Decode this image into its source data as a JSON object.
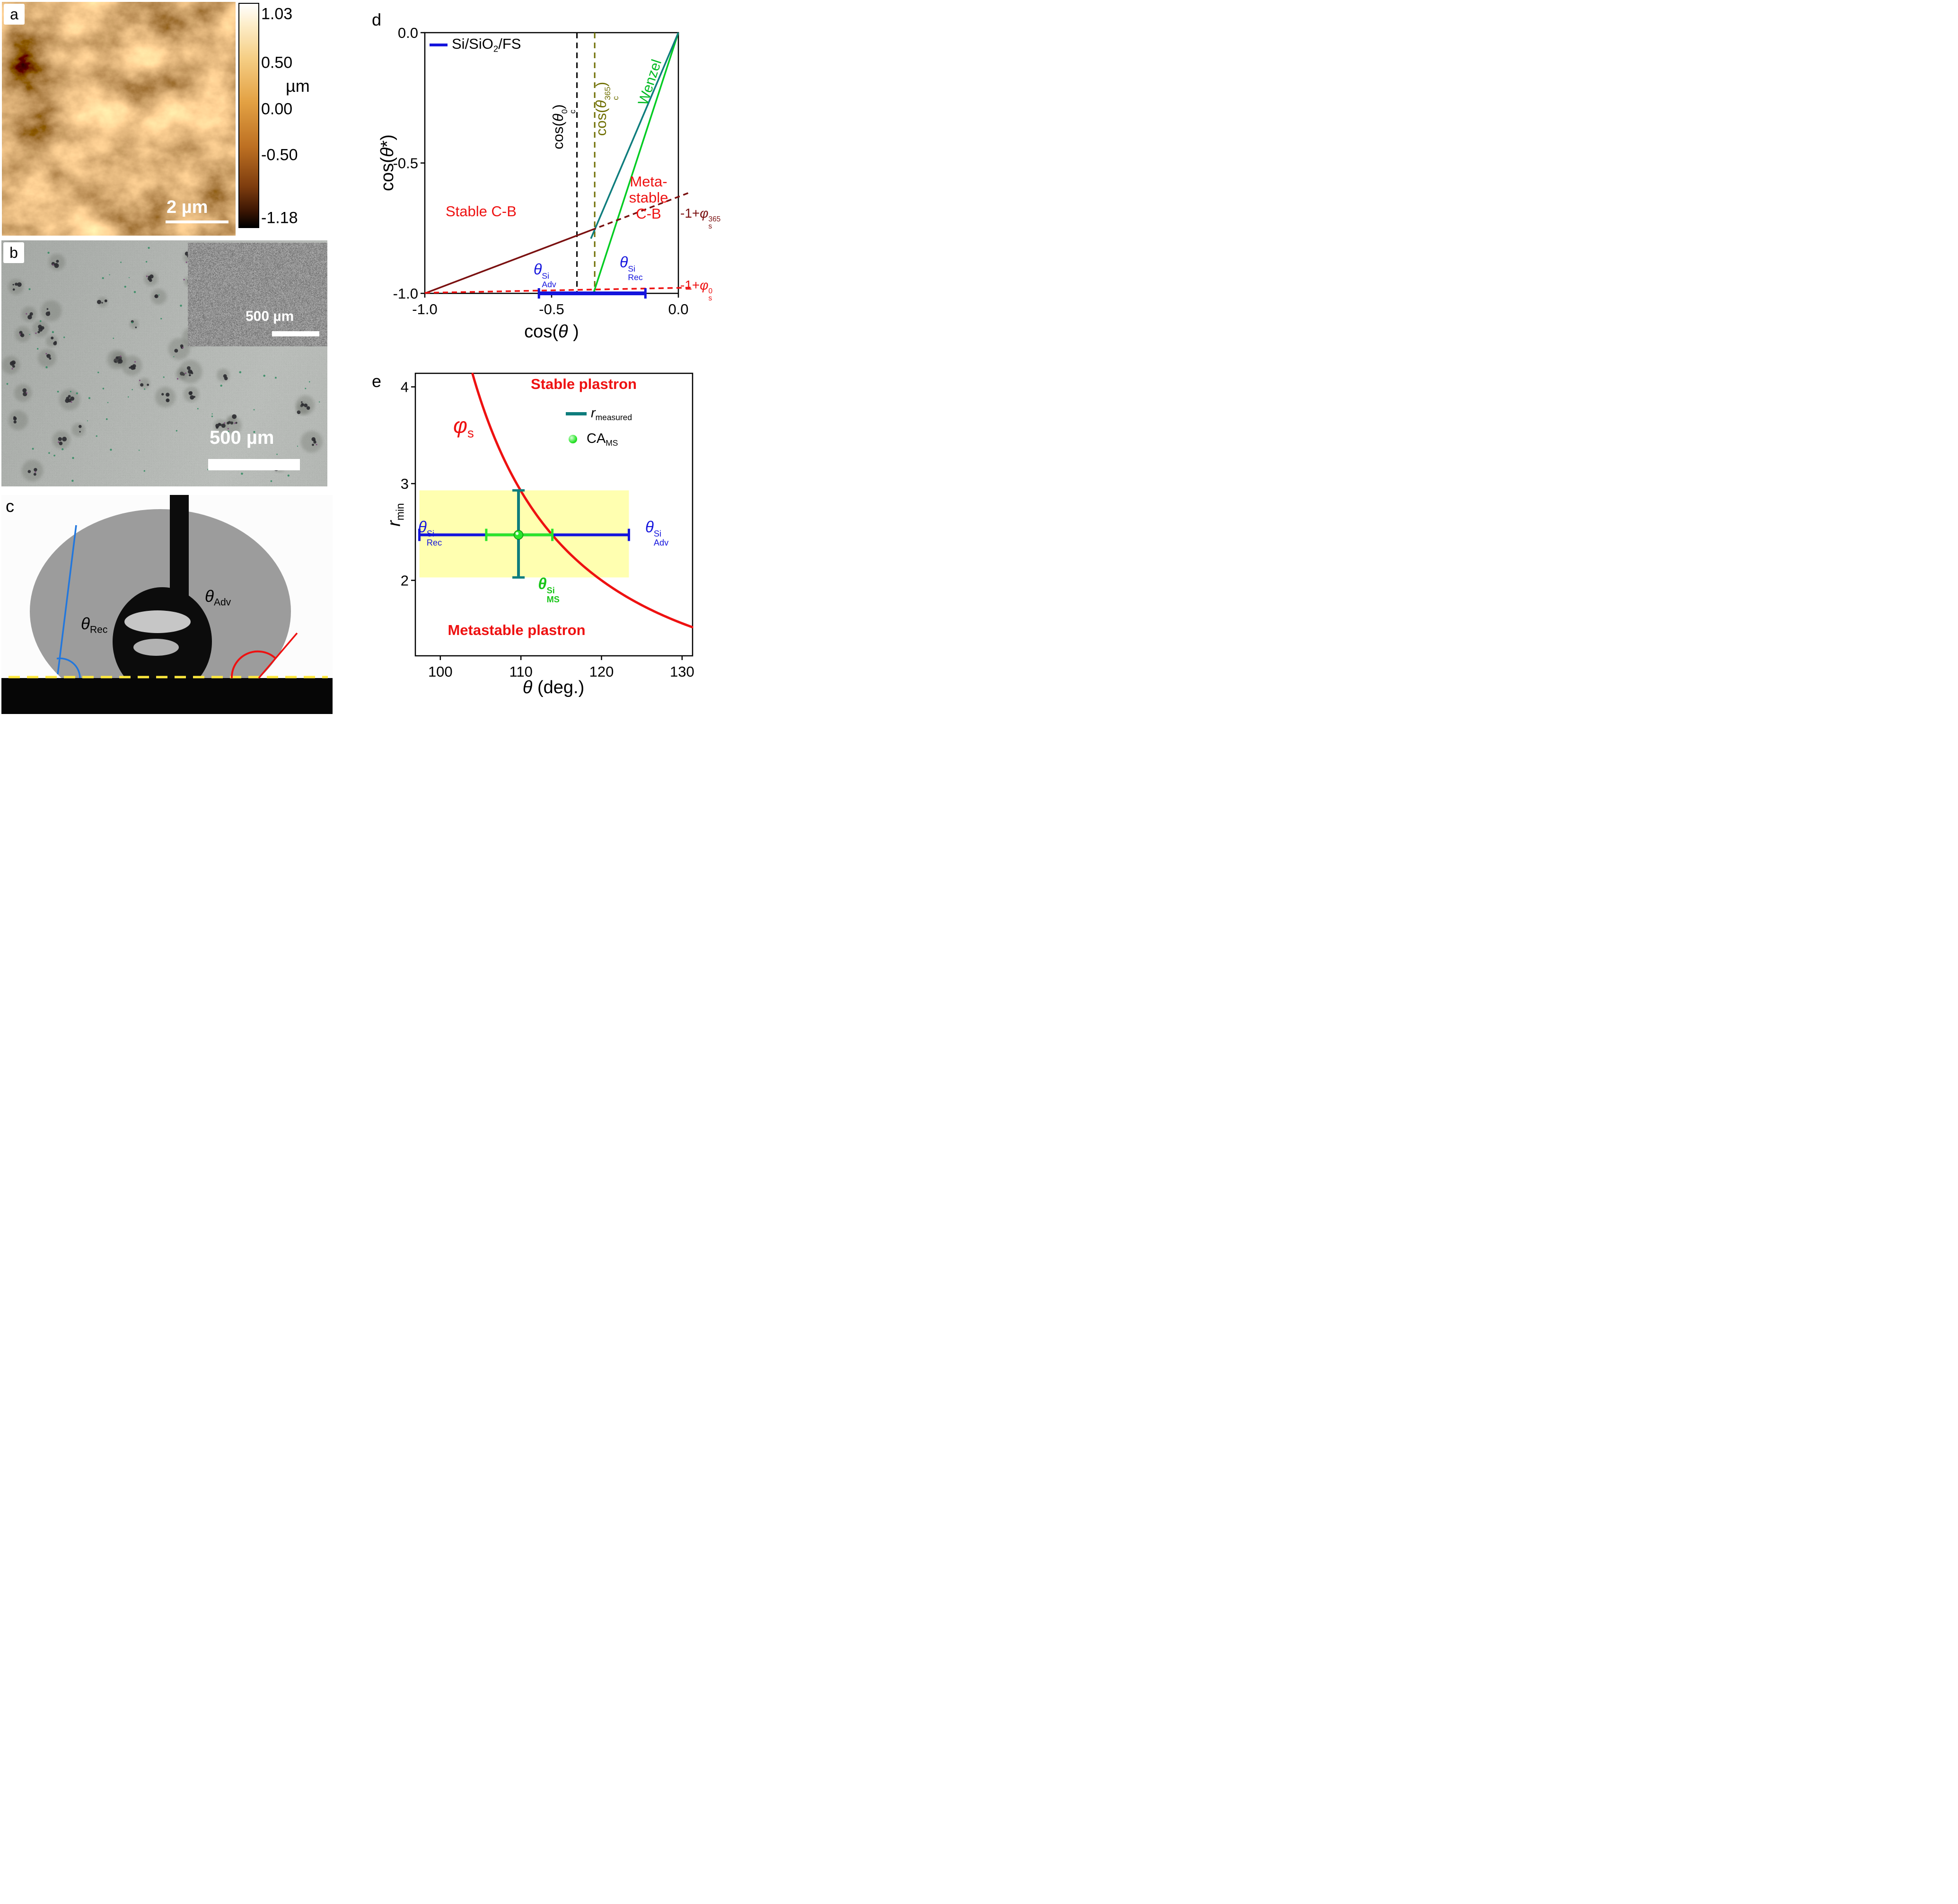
{
  "colors": {
    "blue": "#1414dd",
    "green": "#00cc22",
    "light_green": "#2ae52a",
    "red": "#ee1111",
    "dark_red": "#7a1010",
    "dark_yellow": "#6e6e00",
    "teal": "#0e7d7d",
    "yellow_region": "#ffffb0"
  },
  "panel_a": {
    "label": "a",
    "scalebar": "2 µm",
    "colorbar": {
      "unit": "µm",
      "ticks": [
        "1.03",
        "0.50",
        "0.00",
        "-0.50",
        "-1.18"
      ]
    }
  },
  "panel_b": {
    "label": "b",
    "scalebar": "500 µm",
    "inset_scalebar": "500 µm"
  },
  "panel_c": {
    "label": "c",
    "theta_rec": {
      "it": "θ",
      "sub": "Rec"
    },
    "theta_adv": {
      "it": "θ",
      "sub": "Adv"
    }
  },
  "panel_d": {
    "label": "d",
    "legend_series": {
      "pre": "Si/SiO",
      "sub": "2",
      "post": "/FS"
    },
    "ylabel": {
      "pre": "cos(",
      "it": "θ",
      "post": "*)"
    },
    "xlabel": {
      "pre": "cos(",
      "it": "θ",
      "post": " )"
    },
    "stable_region": "Stable C-B",
    "metastable_lines": [
      "Meta-",
      "stable",
      "C-B"
    ],
    "wenzel": "Wenzel",
    "crit0": {
      "pre": "cos(",
      "it": "θ",
      "sup": "0",
      "sub": "c",
      "post": ")"
    },
    "crit365": {
      "pre": "cos(",
      "it": "θ",
      "sup": "365",
      "sub": "c",
      "post": ")"
    },
    "phi365": {
      "pre": "-1+",
      "it": "φ",
      "sup": "365",
      "sub": "s"
    },
    "phi0": {
      "pre": "-1+",
      "it": "φ",
      "sup": "0",
      "sub": "s"
    },
    "theta_adv": {
      "it": "θ",
      "sup": "Si",
      "sub": "Adv"
    },
    "theta_rec": {
      "it": "θ",
      "sup": "Si",
      "sub": "Rec"
    }
  },
  "panel_e": {
    "label": "e",
    "stable_region": "Stable plastron",
    "metastable_region": "Metastable plastron",
    "phi_s": {
      "it": "φ",
      "sub": "s"
    },
    "legend_r": {
      "it": "r",
      "sub": "measured"
    },
    "legend_ca": {
      "pre": "CA",
      "sub": "MS"
    },
    "ylabel": {
      "it": "r",
      "sub": "min"
    },
    "xlabel": {
      "it": "θ",
      "post": " (deg.)"
    },
    "theta_rec": {
      "it": "θ",
      "sup": "Si",
      "sub": "Rec"
    },
    "theta_adv": {
      "it": "θ",
      "sup": "Si",
      "sub": "Adv"
    },
    "theta_ms": {
      "it": "θ",
      "sup": "Si",
      "sub": "MS"
    }
  },
  "chart_data": [
    {
      "panel": "d",
      "type": "line",
      "title": "",
      "xlabel": "cos(θ)",
      "ylabel": "cos(θ*)",
      "xlim": [
        -1.0,
        0.0
      ],
      "ylim": [
        -1.0,
        0.0
      ],
      "xticks": [
        -1.0,
        -0.5,
        0.0
      ],
      "yticks": [
        0.0,
        -0.5,
        -1.0
      ],
      "tick_decimals": 1,
      "grid": false,
      "legend": [
        {
          "label": "Si/SiO2/FS",
          "color": "#1414dd",
          "position": "top-left"
        }
      ],
      "series": [
        {
          "name": "wenzel-line",
          "color": "#00cc22",
          "width": 3.5,
          "x": [
            0,
            -0.335
          ],
          "y": [
            0,
            -1.0
          ]
        },
        {
          "name": "wenzel-si-line",
          "color": "#0e7d7d",
          "width": 3.5,
          "x": [
            0,
            -0.345
          ],
          "y": [
            0,
            -0.79
          ]
        },
        {
          "name": "cassie-baxter-365-stable",
          "color": "#7a1010",
          "width": 3.5,
          "x": [
            -1.0,
            -0.345
          ],
          "y": [
            -1.0,
            -0.758
          ]
        },
        {
          "name": "cassie-baxter-365-metastable",
          "color": "#7a1010",
          "width": 3.5,
          "dash": [
            11,
            8
          ],
          "x": [
            -0.345,
            0.05
          ],
          "y": [
            -0.758,
            -0.611
          ]
        },
        {
          "name": "cassie-baxter-0",
          "color": "#ee1111",
          "width": 3.5,
          "dash": [
            11,
            8
          ],
          "x": [
            -1.0,
            0.05
          ],
          "y": [
            -0.998,
            -0.978
          ]
        },
        {
          "name": "si-theta-range",
          "color": "#1414dd",
          "width": 8,
          "caps": true,
          "x": [
            -0.55,
            -0.13
          ],
          "y": [
            -1.0,
            -1.0
          ]
        }
      ],
      "vlines": [
        {
          "name": "cos-theta-c0",
          "x": -0.4,
          "color": "#000000",
          "dash": [
            12,
            9
          ],
          "width": 3
        },
        {
          "name": "cos-theta-c365",
          "x": -0.33,
          "color": "#6e6e00",
          "dash": [
            12,
            9
          ],
          "width": 3
        }
      ],
      "annotations": {
        "stable": "Stable C-B",
        "metastable": "Meta-stable C-B",
        "values": {
          "cos_theta_adv_si": -0.55,
          "cos_theta_rec_si": -0.13,
          "phi_s_365": 0.37,
          "phi_s_0": 0.02,
          "cos_theta_c0": -0.4,
          "cos_theta_c365": -0.33
        }
      }
    },
    {
      "panel": "e",
      "type": "line",
      "title": "",
      "xlabel": "θ (deg.)",
      "ylabel": "r_min",
      "xlim": [
        96.9,
        131.3
      ],
      "ylim": [
        1.22,
        4.14
      ],
      "xticks": [
        100,
        110,
        120,
        130
      ],
      "yticks": [
        2,
        3,
        4
      ],
      "tick_decimals": 0,
      "grid": false,
      "curve": {
        "name": "phi-s-stability-curve",
        "color": "#ee1111",
        "width": 5,
        "formula": "r_min = -1/cos(theta)",
        "theta_range": [
          104.0,
          131.3
        ]
      },
      "region": {
        "name": "measured-band",
        "color": "#ffffb0",
        "x": [
          97.4,
          123.4
        ],
        "y": [
          2.03,
          2.93
        ]
      },
      "bars": [
        {
          "name": "si-theta-range",
          "orientation": "h",
          "color": "#1414dd",
          "width": 6,
          "y": 2.47,
          "x": [
            97.4,
            123.4
          ]
        },
        {
          "name": "r-measured-range",
          "orientation": "v",
          "color": "#0e7d7d",
          "width": 6,
          "x": 109.7,
          "y": [
            2.03,
            2.93
          ]
        },
        {
          "name": "theta-ms-range",
          "orientation": "h",
          "color": "#2ae52a",
          "width": 6,
          "y": 2.47,
          "x": [
            105.7,
            113.9
          ]
        }
      ],
      "point": {
        "name": "ca-ms",
        "x": 109.7,
        "y": 2.47,
        "color": "#2ae52a"
      },
      "legend": [
        {
          "label": "r_measured",
          "color": "#0e7d7d"
        },
        {
          "label": "CA_MS",
          "color": "#2ae52a"
        }
      ]
    }
  ]
}
